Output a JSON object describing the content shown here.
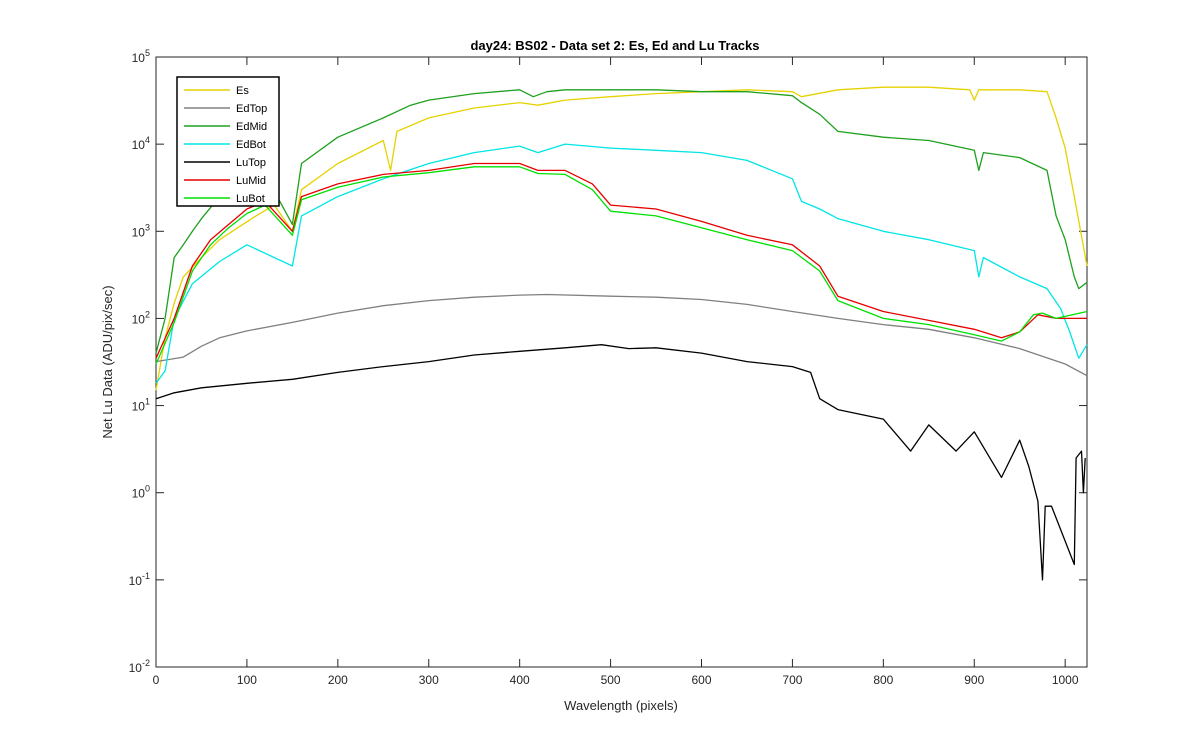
{
  "chart_data": {
    "type": "line",
    "title": "day24: BS02 - Data set 2: Es, Ed and Lu Tracks",
    "xlabel": "Wavelength (pixels)",
    "ylabel": "Net Lu Data (ADU/pix/sec)",
    "xlim": [
      0,
      1024
    ],
    "ylim": [
      0.01,
      100000
    ],
    "yscale": "log",
    "x_ticks": [
      0,
      100,
      200,
      300,
      400,
      500,
      600,
      700,
      800,
      900,
      1000
    ],
    "y_ticks": [
      {
        "value": 0.01,
        "base": "10",
        "exp": "-2"
      },
      {
        "value": 0.1,
        "base": "10",
        "exp": "-1"
      },
      {
        "value": 1,
        "base": "10",
        "exp": "0"
      },
      {
        "value": 10,
        "base": "10",
        "exp": "1"
      },
      {
        "value": 100,
        "base": "10",
        "exp": "2"
      },
      {
        "value": 1000,
        "base": "10",
        "exp": "3"
      },
      {
        "value": 10000,
        "base": "10",
        "exp": "4"
      },
      {
        "value": 100000,
        "base": "10",
        "exp": "5"
      }
    ],
    "grid": false,
    "legend_position": "top-left",
    "series": [
      {
        "name": "Es",
        "color": "#e6d200",
        "points": [
          [
            0,
            15
          ],
          [
            10,
            60
          ],
          [
            20,
            150
          ],
          [
            30,
            300
          ],
          [
            50,
            500
          ],
          [
            70,
            800
          ],
          [
            90,
            1100
          ],
          [
            110,
            1500
          ],
          [
            130,
            2000
          ],
          [
            150,
            1000
          ],
          [
            160,
            3000
          ],
          [
            200,
            6000
          ],
          [
            250,
            11000
          ],
          [
            258,
            5000
          ],
          [
            265,
            14000
          ],
          [
            300,
            20000
          ],
          [
            350,
            26000
          ],
          [
            400,
            30000
          ],
          [
            420,
            28000
          ],
          [
            450,
            32000
          ],
          [
            500,
            35000
          ],
          [
            550,
            38000
          ],
          [
            600,
            40000
          ],
          [
            650,
            42000
          ],
          [
            700,
            40000
          ],
          [
            710,
            35000
          ],
          [
            750,
            42000
          ],
          [
            800,
            45000
          ],
          [
            850,
            45000
          ],
          [
            895,
            42000
          ],
          [
            900,
            32000
          ],
          [
            905,
            42000
          ],
          [
            950,
            42000
          ],
          [
            980,
            40000
          ],
          [
            990,
            20000
          ],
          [
            1000,
            9000
          ],
          [
            1010,
            2500
          ],
          [
            1024,
            400
          ]
        ]
      },
      {
        "name": "EdTop",
        "color": "#808080",
        "points": [
          [
            0,
            32
          ],
          [
            30,
            36
          ],
          [
            50,
            48
          ],
          [
            70,
            60
          ],
          [
            100,
            72
          ],
          [
            150,
            90
          ],
          [
            200,
            115
          ],
          [
            250,
            140
          ],
          [
            300,
            160
          ],
          [
            350,
            175
          ],
          [
            400,
            185
          ],
          [
            430,
            188
          ],
          [
            500,
            180
          ],
          [
            550,
            175
          ],
          [
            600,
            165
          ],
          [
            650,
            145
          ],
          [
            700,
            120
          ],
          [
            750,
            100
          ],
          [
            800,
            85
          ],
          [
            850,
            75
          ],
          [
            900,
            60
          ],
          [
            950,
            45
          ],
          [
            1000,
            30
          ],
          [
            1024,
            22
          ]
        ]
      },
      {
        "name": "EdMid",
        "color": "#1fa01f",
        "points": [
          [
            0,
            40
          ],
          [
            10,
            100
          ],
          [
            20,
            500
          ],
          [
            30,
            700
          ],
          [
            40,
            1000
          ],
          [
            50,
            1400
          ],
          [
            70,
            2500
          ],
          [
            100,
            3500
          ],
          [
            120,
            4500
          ],
          [
            150,
            1200
          ],
          [
            160,
            6000
          ],
          [
            200,
            12000
          ],
          [
            250,
            20000
          ],
          [
            280,
            28000
          ],
          [
            300,
            32000
          ],
          [
            350,
            38000
          ],
          [
            400,
            42000
          ],
          [
            415,
            35000
          ],
          [
            430,
            40000
          ],
          [
            450,
            42000
          ],
          [
            500,
            42000
          ],
          [
            550,
            42000
          ],
          [
            600,
            40000
          ],
          [
            650,
            40000
          ],
          [
            700,
            36000
          ],
          [
            710,
            30000
          ],
          [
            730,
            22000
          ],
          [
            750,
            14000
          ],
          [
            800,
            12000
          ],
          [
            850,
            11000
          ],
          [
            900,
            8500
          ],
          [
            905,
            5000
          ],
          [
            910,
            8000
          ],
          [
            950,
            7000
          ],
          [
            980,
            5000
          ],
          [
            990,
            1500
          ],
          [
            1000,
            800
          ],
          [
            1010,
            300
          ],
          [
            1015,
            220
          ],
          [
            1024,
            260
          ]
        ]
      },
      {
        "name": "EdBot",
        "color": "#00e5e5",
        "points": [
          [
            0,
            18
          ],
          [
            10,
            25
          ],
          [
            20,
            100
          ],
          [
            40,
            250
          ],
          [
            70,
            450
          ],
          [
            100,
            700
          ],
          [
            150,
            400
          ],
          [
            160,
            1500
          ],
          [
            200,
            2500
          ],
          [
            250,
            4000
          ],
          [
            300,
            6000
          ],
          [
            350,
            8000
          ],
          [
            400,
            9500
          ],
          [
            420,
            8000
          ],
          [
            450,
            10000
          ],
          [
            500,
            9000
          ],
          [
            550,
            8500
          ],
          [
            600,
            8000
          ],
          [
            650,
            6500
          ],
          [
            700,
            4000
          ],
          [
            710,
            2200
          ],
          [
            730,
            1800
          ],
          [
            750,
            1400
          ],
          [
            800,
            1000
          ],
          [
            850,
            800
          ],
          [
            900,
            600
          ],
          [
            905,
            300
          ],
          [
            910,
            500
          ],
          [
            950,
            300
          ],
          [
            980,
            220
          ],
          [
            995,
            130
          ],
          [
            1005,
            70
          ],
          [
            1015,
            35
          ],
          [
            1024,
            50
          ]
        ]
      },
      {
        "name": "LuTop",
        "color": "#000000",
        "points": [
          [
            0,
            12
          ],
          [
            20,
            14
          ],
          [
            50,
            16
          ],
          [
            100,
            18
          ],
          [
            150,
            20
          ],
          [
            200,
            24
          ],
          [
            250,
            28
          ],
          [
            300,
            32
          ],
          [
            350,
            38
          ],
          [
            400,
            42
          ],
          [
            450,
            46
          ],
          [
            490,
            50
          ],
          [
            520,
            45
          ],
          [
            550,
            46
          ],
          [
            600,
            40
          ],
          [
            650,
            32
          ],
          [
            700,
            28
          ],
          [
            720,
            24
          ],
          [
            730,
            12
          ],
          [
            750,
            9
          ],
          [
            800,
            7
          ],
          [
            830,
            3
          ],
          [
            850,
            6
          ],
          [
            880,
            3
          ],
          [
            900,
            5
          ],
          [
            930,
            1.5
          ],
          [
            950,
            4
          ],
          [
            960,
            2
          ],
          [
            970,
            0.8
          ],
          [
            975,
            0.1
          ],
          [
            978,
            0.7
          ],
          [
            985,
            0.7
          ],
          [
            1010,
            0.15
          ],
          [
            1012,
            2.5
          ],
          [
            1018,
            3
          ],
          [
            1020,
            1
          ],
          [
            1022,
            2.5
          ]
        ]
      },
      {
        "name": "LuMid",
        "color": "#e60000",
        "points": [
          [
            0,
            35
          ],
          [
            20,
            100
          ],
          [
            40,
            400
          ],
          [
            60,
            800
          ],
          [
            80,
            1200
          ],
          [
            100,
            1800
          ],
          [
            120,
            2200
          ],
          [
            150,
            1000
          ],
          [
            160,
            2500
          ],
          [
            200,
            3500
          ],
          [
            250,
            4500
          ],
          [
            300,
            5000
          ],
          [
            350,
            6000
          ],
          [
            400,
            6000
          ],
          [
            420,
            5000
          ],
          [
            450,
            5000
          ],
          [
            480,
            3500
          ],
          [
            500,
            2000
          ],
          [
            550,
            1800
          ],
          [
            600,
            1300
          ],
          [
            650,
            900
          ],
          [
            700,
            700
          ],
          [
            730,
            400
          ],
          [
            750,
            180
          ],
          [
            800,
            120
          ],
          [
            850,
            95
          ],
          [
            900,
            75
          ],
          [
            930,
            60
          ],
          [
            950,
            70
          ],
          [
            970,
            110
          ],
          [
            990,
            100
          ],
          [
            1024,
            100
          ]
        ]
      },
      {
        "name": "LuBot",
        "color": "#00e000",
        "points": [
          [
            0,
            30
          ],
          [
            20,
            90
          ],
          [
            40,
            350
          ],
          [
            60,
            700
          ],
          [
            80,
            1100
          ],
          [
            100,
            1600
          ],
          [
            120,
            2000
          ],
          [
            150,
            900
          ],
          [
            160,
            2300
          ],
          [
            200,
            3200
          ],
          [
            250,
            4200
          ],
          [
            300,
            4700
          ],
          [
            350,
            5500
          ],
          [
            400,
            5500
          ],
          [
            420,
            4600
          ],
          [
            450,
            4500
          ],
          [
            480,
            3000
          ],
          [
            500,
            1700
          ],
          [
            550,
            1500
          ],
          [
            600,
            1100
          ],
          [
            650,
            800
          ],
          [
            700,
            600
          ],
          [
            730,
            350
          ],
          [
            750,
            160
          ],
          [
            800,
            100
          ],
          [
            850,
            85
          ],
          [
            900,
            65
          ],
          [
            930,
            55
          ],
          [
            950,
            70
          ],
          [
            965,
            110
          ],
          [
            975,
            115
          ],
          [
            990,
            100
          ],
          [
            1024,
            120
          ]
        ]
      }
    ]
  }
}
